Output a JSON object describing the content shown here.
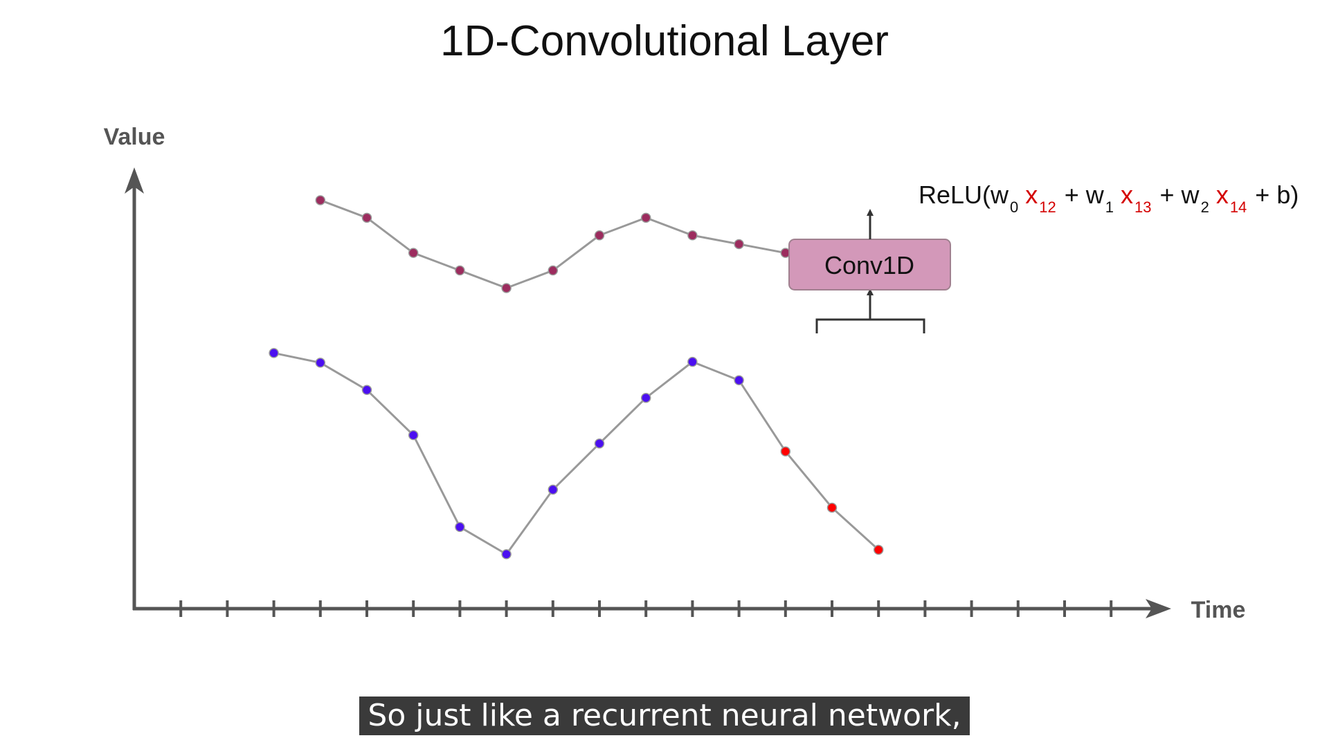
{
  "title": "1D-Convolutional Layer",
  "axes": {
    "y_label": "Value",
    "x_label": "Time"
  },
  "x_ticks": 21,
  "conv_box": {
    "label": "Conv1D",
    "fill": "#d398b9"
  },
  "formula": {
    "prefix": "ReLU(w",
    "w0_sub": "0",
    "x12": "x",
    "x12_sub": "12",
    "plus_w1": " + w",
    "w1_sub": "1",
    "x13": "x",
    "x13_sub": "13",
    "plus_w2": " + w",
    "w2_sub": "2",
    "x14": "x",
    "x14_sub": "14",
    "suffix": " + b)"
  },
  "chart_data": {
    "type": "line",
    "title": "1D-Convolutional Layer",
    "xlabel": "Time",
    "ylabel": "Value",
    "x_range": [
      0,
      21
    ],
    "y_range": [
      0,
      10
    ],
    "series": [
      {
        "role": "input",
        "color": "#4b0ff0",
        "highlight_color": "#ff0000",
        "x": [
          3,
          4,
          5,
          6,
          7,
          8,
          9,
          10,
          11,
          12,
          13,
          14,
          15,
          16
        ],
        "y": [
          5.82,
          5.6,
          4.98,
          3.95,
          1.86,
          1.24,
          2.71,
          3.76,
          4.8,
          5.62,
          5.2,
          3.58,
          2.3,
          1.34
        ],
        "highlight_x": [
          14,
          15,
          16
        ]
      },
      {
        "role": "output",
        "color": "#9c2c5e",
        "x": [
          4,
          5,
          6,
          7,
          8,
          9,
          10,
          11,
          12,
          13,
          14,
          15
        ],
        "y": [
          9.3,
          8.9,
          8.1,
          7.7,
          7.3,
          7.7,
          8.5,
          8.9,
          8.5,
          8.3,
          8.1,
          7.7
        ]
      }
    ]
  },
  "caption": "So just like a recurrent neural network,"
}
